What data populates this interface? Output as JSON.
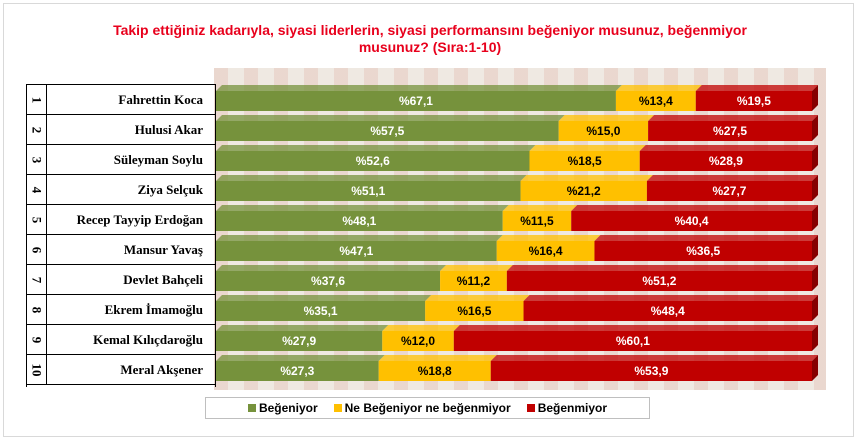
{
  "chart_data": {
    "type": "bar",
    "stacked": true,
    "orientation": "horizontal",
    "title": "Takip ettiğiniz kadarıyla, siyasi liderlerin, siyasi performansını beğeniyor musunuz, beğenmiyor musunuz? (Sıra:1-10)",
    "ranks": [
      "1",
      "2",
      "3",
      "4",
      "5",
      "6",
      "7",
      "8",
      "9",
      "10"
    ],
    "categories": [
      "Fahrettin Koca",
      "Hulusi Akar",
      "Süleyman Soylu",
      "Ziya Selçuk",
      "Recep Tayyip Erdoğan",
      "Mansur Yavaş",
      "Devlet Bahçeli",
      "Ekrem İmamoğlu",
      "Kemal Kılıçdaroğlu",
      "Meral Akşener"
    ],
    "series": [
      {
        "name": "Beğeniyor",
        "color": "#76923c",
        "values": [
          67.1,
          57.5,
          52.6,
          51.1,
          48.1,
          47.1,
          37.6,
          35.1,
          27.9,
          27.3
        ],
        "labels": [
          "%67,1",
          "%57,5",
          "%52,6",
          "%51,1",
          "%48,1",
          "%47,1",
          "%37,6",
          "%35,1",
          "%27,9",
          "%27,3"
        ]
      },
      {
        "name": "Ne Beğeniyor ne beğenmiyor",
        "color": "#ffc000",
        "values": [
          13.4,
          15.0,
          18.5,
          21.2,
          11.5,
          16.4,
          11.2,
          16.5,
          12.0,
          18.8
        ],
        "labels": [
          "%13,4",
          "%15,0",
          "%18,5",
          "%21,2",
          "%11,5",
          "%16,4",
          "%11,2",
          "%16,5",
          "%12,0",
          "%18,8"
        ]
      },
      {
        "name": "Beğenmiyor",
        "color": "#c00000",
        "values": [
          19.5,
          27.5,
          28.9,
          27.7,
          40.4,
          36.5,
          51.2,
          48.4,
          60.1,
          53.9
        ],
        "labels": [
          "%19,5",
          "%27,5",
          "%28,9",
          "%27,7",
          "%40,4",
          "%36,5",
          "%51,2",
          "%48,4",
          "%60,1",
          "%53,9"
        ]
      }
    ],
    "xlim": [
      0,
      100
    ],
    "legend_position": "bottom",
    "grid": false
  }
}
